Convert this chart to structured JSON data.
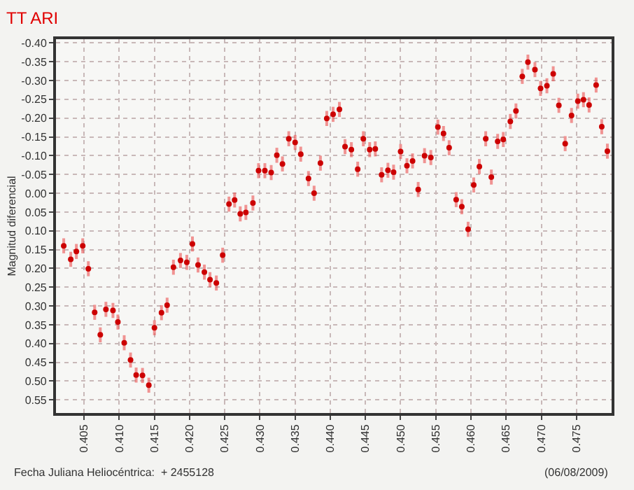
{
  "chart_data": {
    "type": "scatter",
    "title": "TT ARI",
    "ylabel": "Magnitud diferencial",
    "annotations": [
      "Fecha Juliana Heliocéntrica:  + 2455128",
      "(06/08/2009)"
    ],
    "x": [
      0.4021,
      0.4031,
      0.4039,
      0.4048,
      0.4056,
      0.4065,
      0.4073,
      0.4081,
      0.4091,
      0.4098,
      0.4107,
      0.4116,
      0.4124,
      0.4133,
      0.4142,
      0.415,
      0.416,
      0.4168,
      0.4177,
      0.4187,
      0.4196,
      0.4204,
      0.4212,
      0.4221,
      0.4229,
      0.4238,
      0.4247,
      0.4256,
      0.4264,
      0.4272,
      0.428,
      0.429,
      0.4298,
      0.4307,
      0.4316,
      0.4324,
      0.4332,
      0.4341,
      0.435,
      0.4358,
      0.4369,
      0.4377,
      0.4386,
      0.4395,
      0.4404,
      0.4413,
      0.4421,
      0.443,
      0.4439,
      0.4447,
      0.4456,
      0.4464,
      0.4473,
      0.4482,
      0.449,
      0.45,
      0.4509,
      0.4517,
      0.4525,
      0.4534,
      0.4543,
      0.4553,
      0.4561,
      0.4569,
      0.4579,
      0.4587,
      0.4596,
      0.4604,
      0.4612,
      0.4621,
      0.4629,
      0.4638,
      0.4646,
      0.4656,
      0.4664,
      0.4673,
      0.4681,
      0.4691,
      0.4699,
      0.4708,
      0.4717,
      0.4725,
      0.4734,
      0.4743,
      0.4752,
      0.476,
      0.4768,
      0.4778,
      0.4786,
      0.4794
    ],
    "series": [
      {
        "color": "#cc0000",
        "values": [
          0.14,
          0.176,
          0.155,
          0.14,
          0.201,
          0.317,
          0.377,
          0.309,
          0.312,
          0.343,
          0.398,
          0.444,
          0.484,
          0.485,
          0.511,
          0.358,
          0.318,
          0.298,
          0.197,
          0.179,
          0.184,
          0.135,
          0.191,
          0.21,
          0.23,
          0.239,
          0.165,
          0.029,
          0.018,
          0.055,
          0.051,
          0.026,
          -0.06,
          -0.06,
          -0.055,
          -0.101,
          -0.078,
          -0.145,
          -0.135,
          -0.104,
          -0.039,
          0.0,
          -0.08,
          -0.199,
          -0.21,
          -0.223,
          -0.124,
          -0.116,
          -0.064,
          -0.145,
          -0.116,
          -0.118,
          -0.049,
          -0.061,
          -0.056,
          -0.111,
          -0.073,
          -0.086,
          -0.01,
          -0.1,
          -0.095,
          -0.176,
          -0.159,
          -0.121,
          0.017,
          0.036,
          0.096,
          -0.022,
          -0.071,
          -0.145,
          -0.043,
          -0.138,
          -0.143,
          -0.191,
          -0.219,
          -0.311,
          -0.349,
          -0.329,
          -0.279,
          -0.286,
          -0.318,
          -0.234,
          -0.132,
          -0.207,
          -0.245,
          -0.249,
          -0.235,
          -0.288,
          -0.177,
          -0.112
        ],
        "errors": [
          0.02,
          0.02,
          0.02,
          0.02,
          0.02,
          0.02,
          0.02,
          0.02,
          0.02,
          0.02,
          0.02,
          0.02,
          0.02,
          0.02,
          0.02,
          0.02,
          0.02,
          0.02,
          0.02,
          0.02,
          0.02,
          0.02,
          0.02,
          0.02,
          0.02,
          0.02,
          0.02,
          0.02,
          0.02,
          0.02,
          0.02,
          0.02,
          0.02,
          0.02,
          0.02,
          0.02,
          0.02,
          0.02,
          0.02,
          0.02,
          0.02,
          0.02,
          0.02,
          0.02,
          0.02,
          0.02,
          0.02,
          0.02,
          0.02,
          0.02,
          0.02,
          0.02,
          0.02,
          0.02,
          0.02,
          0.02,
          0.02,
          0.02,
          0.02,
          0.02,
          0.02,
          0.02,
          0.02,
          0.02,
          0.02,
          0.02,
          0.02,
          0.02,
          0.02,
          0.02,
          0.02,
          0.02,
          0.02,
          0.02,
          0.02,
          0.02,
          0.02,
          0.02,
          0.02,
          0.02,
          0.02,
          0.02,
          0.02,
          0.02,
          0.02,
          0.02,
          0.02,
          0.02,
          0.02,
          0.02
        ]
      }
    ],
    "xlim": [
      0.401,
      0.48
    ],
    "xticks": [
      0.405,
      {
        "value": 0.41,
        "label": "0.410"
      },
      0.415,
      {
        "value": 0.42,
        "label": "0.420"
      },
      0.425,
      {
        "value": 0.43,
        "label": "0.430"
      },
      0.435,
      {
        "value": 0.44,
        "label": "0.440"
      },
      0.445,
      {
        "value": 0.45,
        "label": "0.450"
      },
      0.455,
      {
        "value": 0.46,
        "label": "0.460"
      },
      0.465,
      {
        "value": 0.47,
        "label": "0.470"
      },
      0.475
    ],
    "ylim": [
      0.585,
      -0.41
    ],
    "yticks": [
      {
        "value": -0.4,
        "label": "-0.40"
      },
      -0.35,
      {
        "value": -0.3,
        "label": "-0.30"
      },
      -0.25,
      {
        "value": -0.2,
        "label": "-0.20"
      },
      -0.15,
      {
        "value": -0.1,
        "label": "-0.10"
      },
      -0.05,
      {
        "value": 0,
        "label": "0.00"
      },
      0.05,
      {
        "value": 0.1,
        "label": "0.10"
      },
      0.15,
      {
        "value": 0.2,
        "label": "0.20"
      },
      0.25,
      {
        "value": 0.3,
        "label": "0.30"
      },
      0.35,
      {
        "value": 0.4,
        "label": "0.40"
      },
      0.45,
      {
        "value": 0.5,
        "label": "0.50"
      },
      0.55
    ],
    "grid": true,
    "marker": "circle"
  }
}
